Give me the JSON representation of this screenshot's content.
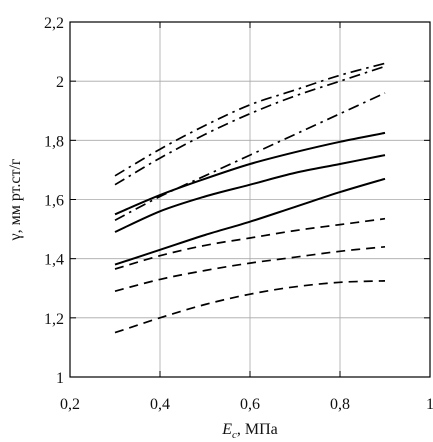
{
  "chart_data": {
    "type": "line",
    "xlabel_symbol": "E",
    "xlabel_subscript": "c",
    "xlabel_unit": ", МПа",
    "ylabel": "γ, мм рт.ст/г",
    "xlim": [
      0.2,
      1.0
    ],
    "ylim": [
      1.0,
      2.2
    ],
    "x_ticks": [
      {
        "value": 0.2,
        "label": "0,2"
      },
      {
        "value": 0.4,
        "label": "0,4"
      },
      {
        "value": 0.6,
        "label": "0,6"
      },
      {
        "value": 0.8,
        "label": "0,8"
      },
      {
        "value": 1.0,
        "label": "1"
      }
    ],
    "y_ticks": [
      {
        "value": 1.0,
        "label": "1"
      },
      {
        "value": 1.2,
        "label": "1,2"
      },
      {
        "value": 1.4,
        "label": "1,4"
      },
      {
        "value": 1.6,
        "label": "1,6"
      },
      {
        "value": 1.8,
        "label": "1,8"
      },
      {
        "value": 2.0,
        "label": "2"
      },
      {
        "value": 2.2,
        "label": "2,2"
      }
    ],
    "grid": true,
    "series": [
      {
        "style": "dashdot",
        "x": [
          0.3,
          0.4,
          0.5,
          0.6,
          0.7,
          0.8,
          0.9
        ],
        "y": [
          1.68,
          1.77,
          1.85,
          1.92,
          1.97,
          2.02,
          2.06
        ]
      },
      {
        "style": "dashdot",
        "x": [
          0.3,
          0.4,
          0.5,
          0.6,
          0.7,
          0.8,
          0.9
        ],
        "y": [
          1.65,
          1.74,
          1.82,
          1.89,
          1.95,
          2.0,
          2.05
        ]
      },
      {
        "style": "dashdot",
        "x": [
          0.3,
          0.4,
          0.5,
          0.6,
          0.7,
          0.8,
          0.9
        ],
        "y": [
          1.53,
          1.61,
          1.68,
          1.75,
          1.82,
          1.89,
          1.96
        ]
      },
      {
        "style": "solid",
        "x": [
          0.3,
          0.4,
          0.5,
          0.6,
          0.7,
          0.8,
          0.9
        ],
        "y": [
          1.55,
          1.615,
          1.67,
          1.72,
          1.76,
          1.795,
          1.825
        ]
      },
      {
        "style": "solid",
        "x": [
          0.3,
          0.4,
          0.5,
          0.6,
          0.7,
          0.8,
          0.9
        ],
        "y": [
          1.49,
          1.56,
          1.61,
          1.65,
          1.69,
          1.72,
          1.75
        ]
      },
      {
        "style": "solid",
        "x": [
          0.3,
          0.4,
          0.5,
          0.6,
          0.7,
          0.8,
          0.9
        ],
        "y": [
          1.38,
          1.43,
          1.48,
          1.525,
          1.575,
          1.625,
          1.67
        ]
      },
      {
        "style": "dashed",
        "x": [
          0.3,
          0.4,
          0.5,
          0.6,
          0.7,
          0.8,
          0.9
        ],
        "y": [
          1.365,
          1.41,
          1.445,
          1.47,
          1.495,
          1.515,
          1.535
        ]
      },
      {
        "style": "dashed",
        "x": [
          0.3,
          0.4,
          0.5,
          0.6,
          0.7,
          0.8,
          0.9
        ],
        "y": [
          1.29,
          1.33,
          1.36,
          1.385,
          1.405,
          1.425,
          1.44
        ]
      },
      {
        "style": "dashed",
        "x": [
          0.3,
          0.4,
          0.5,
          0.6,
          0.7,
          0.8,
          0.9
        ],
        "y": [
          1.15,
          1.2,
          1.245,
          1.28,
          1.305,
          1.32,
          1.325
        ]
      }
    ]
  }
}
